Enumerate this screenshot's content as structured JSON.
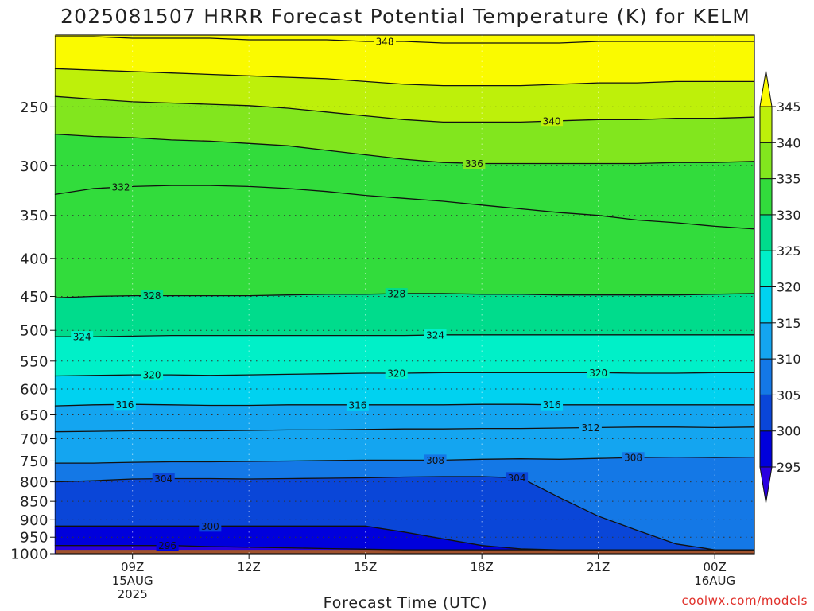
{
  "chart_data": {
    "type": "heatmap",
    "title": "2025081507 HRRR Forecast Potential Temperature (K) for KELM",
    "xlabel": "Forecast Time (UTC)",
    "ylabel": "",
    "credit": "coolwx.com/models",
    "y_scale": "log-pressure",
    "ylim_hpa": [
      1000,
      200
    ],
    "y_ticks": [
      250,
      300,
      350,
      400,
      450,
      500,
      550,
      600,
      650,
      700,
      750,
      800,
      850,
      900,
      950,
      1000
    ],
    "x_range_forecast_hours": [
      0,
      18
    ],
    "x_ticks": [
      {
        "hour": 2,
        "line1": "09Z",
        "line2": "15AUG",
        "line3": "2025"
      },
      {
        "hour": 5,
        "line1": "12Z",
        "line2": "",
        "line3": ""
      },
      {
        "hour": 8,
        "line1": "15Z",
        "line2": "",
        "line3": ""
      },
      {
        "hour": 11,
        "line1": "18Z",
        "line2": "",
        "line3": ""
      },
      {
        "hour": 14,
        "line1": "21Z",
        "line2": "",
        "line3": ""
      },
      {
        "hour": 17,
        "line1": "00Z",
        "line2": "16AUG",
        "line3": ""
      }
    ],
    "grid": true,
    "surface_fill_color": "#a0522d",
    "colorbar": {
      "placement": "right",
      "levels": [
        295,
        300,
        305,
        310,
        315,
        320,
        325,
        330,
        335,
        340,
        345
      ],
      "colors": [
        "#2b00e0",
        "#0000dc",
        "#0a46d8",
        "#1478e6",
        "#14a5f0",
        "#00d2f0",
        "#00f0c8",
        "#00dc8c",
        "#32dc3c",
        "#82e61e",
        "#bef00a",
        "#fafa00"
      ]
    },
    "series": [
      {
        "theta": 296,
        "values": [
          975,
          975,
          975,
          975,
          978,
          980,
          982,
          984,
          986,
          988,
          988,
          988,
          988,
          988,
          988,
          988,
          988,
          988,
          988
        ]
      },
      {
        "theta": 300,
        "values": [
          918,
          918,
          918,
          918,
          918,
          918,
          918,
          918,
          918,
          935,
          955,
          975,
          985,
          988,
          988,
          988,
          988,
          988,
          988
        ]
      },
      {
        "theta": 304,
        "values": [
          800,
          797,
          793,
          792,
          792,
          793,
          792,
          791,
          790,
          788,
          787,
          787,
          790,
          840,
          890,
          930,
          970,
          988,
          988
        ]
      },
      {
        "theta": 308,
        "values": [
          755,
          755,
          753,
          752,
          752,
          751,
          750,
          749,
          748,
          748,
          748,
          746,
          745,
          746,
          744,
          742,
          741,
          742,
          741
        ]
      },
      {
        "theta": 312,
        "values": [
          685,
          684,
          683,
          683,
          683,
          682,
          681,
          681,
          680,
          679,
          679,
          678,
          678,
          677,
          676,
          675,
          675,
          676,
          675
        ]
      },
      {
        "theta": 316,
        "values": [
          632,
          630,
          629,
          630,
          631,
          631,
          630,
          630,
          630,
          630,
          630,
          629,
          629,
          630,
          630,
          630,
          630,
          630,
          630
        ]
      },
      {
        "theta": 320,
        "values": [
          576,
          575,
          574,
          574,
          575,
          574,
          573,
          572,
          571,
          571,
          570,
          570,
          570,
          570,
          570,
          571,
          571,
          570,
          570
        ]
      },
      {
        "theta": 324,
        "values": [
          510,
          510,
          509,
          508,
          508,
          508,
          508,
          508,
          508,
          508,
          507,
          507,
          507,
          507,
          507,
          507,
          507,
          507,
          507
        ]
      },
      {
        "theta": 328,
        "values": [
          452,
          450,
          449,
          449,
          449,
          449,
          448,
          447,
          447,
          446,
          446,
          447,
          447,
          448,
          448,
          448,
          448,
          447,
          446
        ]
      },
      {
        "theta": 332,
        "values": [
          328,
          322,
          320,
          319,
          319,
          320,
          322,
          325,
          329,
          332,
          335,
          339,
          343,
          347,
          350,
          355,
          358,
          362,
          365
        ]
      },
      {
        "theta": 336,
        "values": [
          272,
          274,
          275,
          277,
          278,
          280,
          282,
          286,
          290,
          294,
          297,
          298,
          298,
          298,
          298,
          298,
          297,
          297,
          296
        ]
      },
      {
        "theta": 340,
        "values": [
          242,
          244,
          246,
          247,
          248,
          249,
          251,
          254,
          257,
          260,
          262,
          262,
          262,
          261,
          260,
          260,
          259,
          259,
          258
        ]
      },
      {
        "theta": 344,
        "values": [
          222,
          223,
          224,
          225,
          226,
          227,
          228,
          229,
          231,
          233,
          234,
          234,
          234,
          233,
          232,
          232,
          231,
          231,
          231
        ]
      },
      {
        "theta": 348,
        "values": [
          201,
          201,
          202,
          202,
          202,
          203,
          203,
          203,
          204,
          204,
          205,
          205,
          205,
          205,
          204,
          204,
          204,
          204,
          204
        ]
      }
    ],
    "contour_labels": [
      {
        "theta": 348,
        "hour": 8.5
      },
      {
        "theta": 340,
        "hour": 12.8
      },
      {
        "theta": 336,
        "hour": 10.8
      },
      {
        "theta": 332,
        "hour": 1.7
      },
      {
        "theta": 328,
        "hour": 2.5
      },
      {
        "theta": 328,
        "hour": 8.8
      },
      {
        "theta": 324,
        "hour": 0.7
      },
      {
        "theta": 324,
        "hour": 9.8
      },
      {
        "theta": 320,
        "hour": 2.5
      },
      {
        "theta": 320,
        "hour": 8.8
      },
      {
        "theta": 320,
        "hour": 14.0
      },
      {
        "theta": 316,
        "hour": 1.8
      },
      {
        "theta": 316,
        "hour": 7.8
      },
      {
        "theta": 316,
        "hour": 12.8
      },
      {
        "theta": 312,
        "hour": 13.8
      },
      {
        "theta": 308,
        "hour": 9.8
      },
      {
        "theta": 308,
        "hour": 14.9
      },
      {
        "theta": 304,
        "hour": 2.8
      },
      {
        "theta": 304,
        "hour": 11.9
      },
      {
        "theta": 300,
        "hour": 4.0
      },
      {
        "theta": 296,
        "hour": 2.9
      }
    ]
  }
}
